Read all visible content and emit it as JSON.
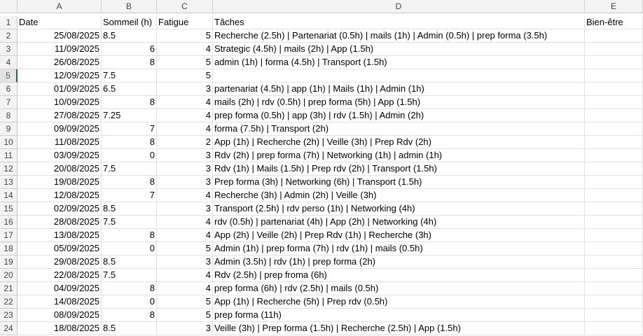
{
  "columns": [
    "A",
    "B",
    "C",
    "D",
    "E"
  ],
  "header_row": {
    "num": "1",
    "a": "Date",
    "b": "Sommeil (h)",
    "c": "Fatigue",
    "d": "Tâches",
    "e": "Bien-être"
  },
  "rows": [
    {
      "num": "2",
      "date": "25/08/2025",
      "sommeil": "8.5",
      "sommeil_align": "left",
      "fatigue": "5",
      "taches": "Recherche (2.5h) | Partenariat (0.5h) | mails (1h) | Admin (0.5h) | prep forma (3.5h)",
      "bien_etre": ""
    },
    {
      "num": "3",
      "date": "11/09/2025",
      "sommeil": "6",
      "sommeil_align": "right",
      "fatigue": "4",
      "taches": "Strategic (4.5h) | mails (2h) | App (1.5h)",
      "bien_etre": ""
    },
    {
      "num": "4",
      "date": "26/08/2025",
      "sommeil": "8",
      "sommeil_align": "right",
      "fatigue": "5",
      "taches": "admin (1h) | forma (4.5h) | Transport (1.5h)",
      "bien_etre": ""
    },
    {
      "num": "5",
      "date": "12/09/2025",
      "sommeil": "7.5",
      "sommeil_align": "left",
      "fatigue": "5",
      "taches": "",
      "bien_etre": ""
    },
    {
      "num": "6",
      "date": "01/09/2025",
      "sommeil": "6.5",
      "sommeil_align": "left",
      "fatigue": "3",
      "taches": "partenariat (4.5h) | app (1h) | Mails (1h) | Admin (1h)",
      "bien_etre": ""
    },
    {
      "num": "7",
      "date": "10/09/2025",
      "sommeil": "8",
      "sommeil_align": "right",
      "fatigue": "4",
      "taches": "mails (2h) | rdv (0.5h) | prep forma (5h) | App (1.5h)",
      "bien_etre": ""
    },
    {
      "num": "8",
      "date": "27/08/2025",
      "sommeil": "7.25",
      "sommeil_align": "left",
      "fatigue": "4",
      "taches": "prep forma (0.5h) | app (3h) | rdv (1.5h) | Admin (2h)",
      "bien_etre": ""
    },
    {
      "num": "9",
      "date": "09/09/2025",
      "sommeil": "7",
      "sommeil_align": "right",
      "fatigue": "4",
      "taches": "forma  (7.5h) | Transport (2h)",
      "bien_etre": ""
    },
    {
      "num": "10",
      "date": "11/08/2025",
      "sommeil": "8",
      "sommeil_align": "right",
      "fatigue": "2",
      "taches": "App (1h) | Recherche (2h) | Veille (3h) | Prep Rdv (2h)",
      "bien_etre": ""
    },
    {
      "num": "11",
      "date": "03/09/2025",
      "sommeil": "0",
      "sommeil_align": "right",
      "fatigue": "3",
      "taches": "Rdv (2h) | prep forma (7h) | Networking (1h) | admin (1h)",
      "bien_etre": ""
    },
    {
      "num": "12",
      "date": "20/08/2025",
      "sommeil": "7.5",
      "sommeil_align": "left",
      "fatigue": "3",
      "taches": "Rdv (1h) | Mails (1.5h) | Prep rdv (2h) | Transport (1.5h)",
      "bien_etre": ""
    },
    {
      "num": "13",
      "date": "19/08/2025",
      "sommeil": "8",
      "sommeil_align": "right",
      "fatigue": "3",
      "taches": "Prep forma (3h) | Networking (6h) | Transport (1.5h)",
      "bien_etre": ""
    },
    {
      "num": "14",
      "date": "12/08/2025",
      "sommeil": "7",
      "sommeil_align": "right",
      "fatigue": "4",
      "taches": "Recherche (3h) | Admin (2h) | Veille (3h)",
      "bien_etre": ""
    },
    {
      "num": "15",
      "date": "02/09/2025",
      "sommeil": "8.5",
      "sommeil_align": "left",
      "fatigue": "3",
      "taches": "Transport (2.5h) | rdv perso (1h) | Networking (4h)",
      "bien_etre": ""
    },
    {
      "num": "16",
      "date": "28/08/2025",
      "sommeil": "7.5",
      "sommeil_align": "left",
      "fatigue": "4",
      "taches": "rdv (0.5h) | partenariat (4h) | App (2h) | Networking (4h)",
      "bien_etre": ""
    },
    {
      "num": "17",
      "date": "13/08/2025",
      "sommeil": "8",
      "sommeil_align": "right",
      "fatigue": "4",
      "taches": "App (2h) | Veille (2h) | Prep Rdv (1h) | Recherche (3h)",
      "bien_etre": ""
    },
    {
      "num": "18",
      "date": "05/09/2025",
      "sommeil": "0",
      "sommeil_align": "right",
      "fatigue": "5",
      "taches": "Admin (1h) | prep forma (7h) | rdv (1h) | mails (0.5h)",
      "bien_etre": ""
    },
    {
      "num": "19",
      "date": "29/08/2025",
      "sommeil": "8.5",
      "sommeil_align": "left",
      "fatigue": "3",
      "taches": "Admin (3.5h) | rdv (1h) | prep forma (2h)",
      "bien_etre": ""
    },
    {
      "num": "20",
      "date": "22/08/2025",
      "sommeil": "7.5",
      "sommeil_align": "left",
      "fatigue": "4",
      "taches": "Rdv (2.5h) | prep froma (6h)",
      "bien_etre": ""
    },
    {
      "num": "21",
      "date": "04/09/2025",
      "sommeil": "8",
      "sommeil_align": "right",
      "fatigue": "4",
      "taches": "prep forma (6h) | rdv (2.5h) | mails (0.5h)",
      "bien_etre": ""
    },
    {
      "num": "22",
      "date": "14/08/2025",
      "sommeil": "0",
      "sommeil_align": "right",
      "fatigue": "5",
      "taches": "App (1h) | Recherche (5h) | Prep rdv (0.5h)",
      "bien_etre": ""
    },
    {
      "num": "23",
      "date": "08/09/2025",
      "sommeil": "8",
      "sommeil_align": "right",
      "fatigue": "5",
      "taches": "prep forma (11h)",
      "bien_etre": ""
    },
    {
      "num": "24",
      "date": "18/08/2025",
      "sommeil": "8.5",
      "sommeil_align": "left",
      "fatigue": "3",
      "taches": "Veille (3h) | Prep forma (1.5h) | Recherche (2.5h) | App (1.5h)",
      "bien_etre": ""
    }
  ],
  "active_row": "5",
  "colors": {
    "header_bg": "#f3f3f3",
    "gridline": "#e1e1e1",
    "active_accent": "#1e7145"
  }
}
